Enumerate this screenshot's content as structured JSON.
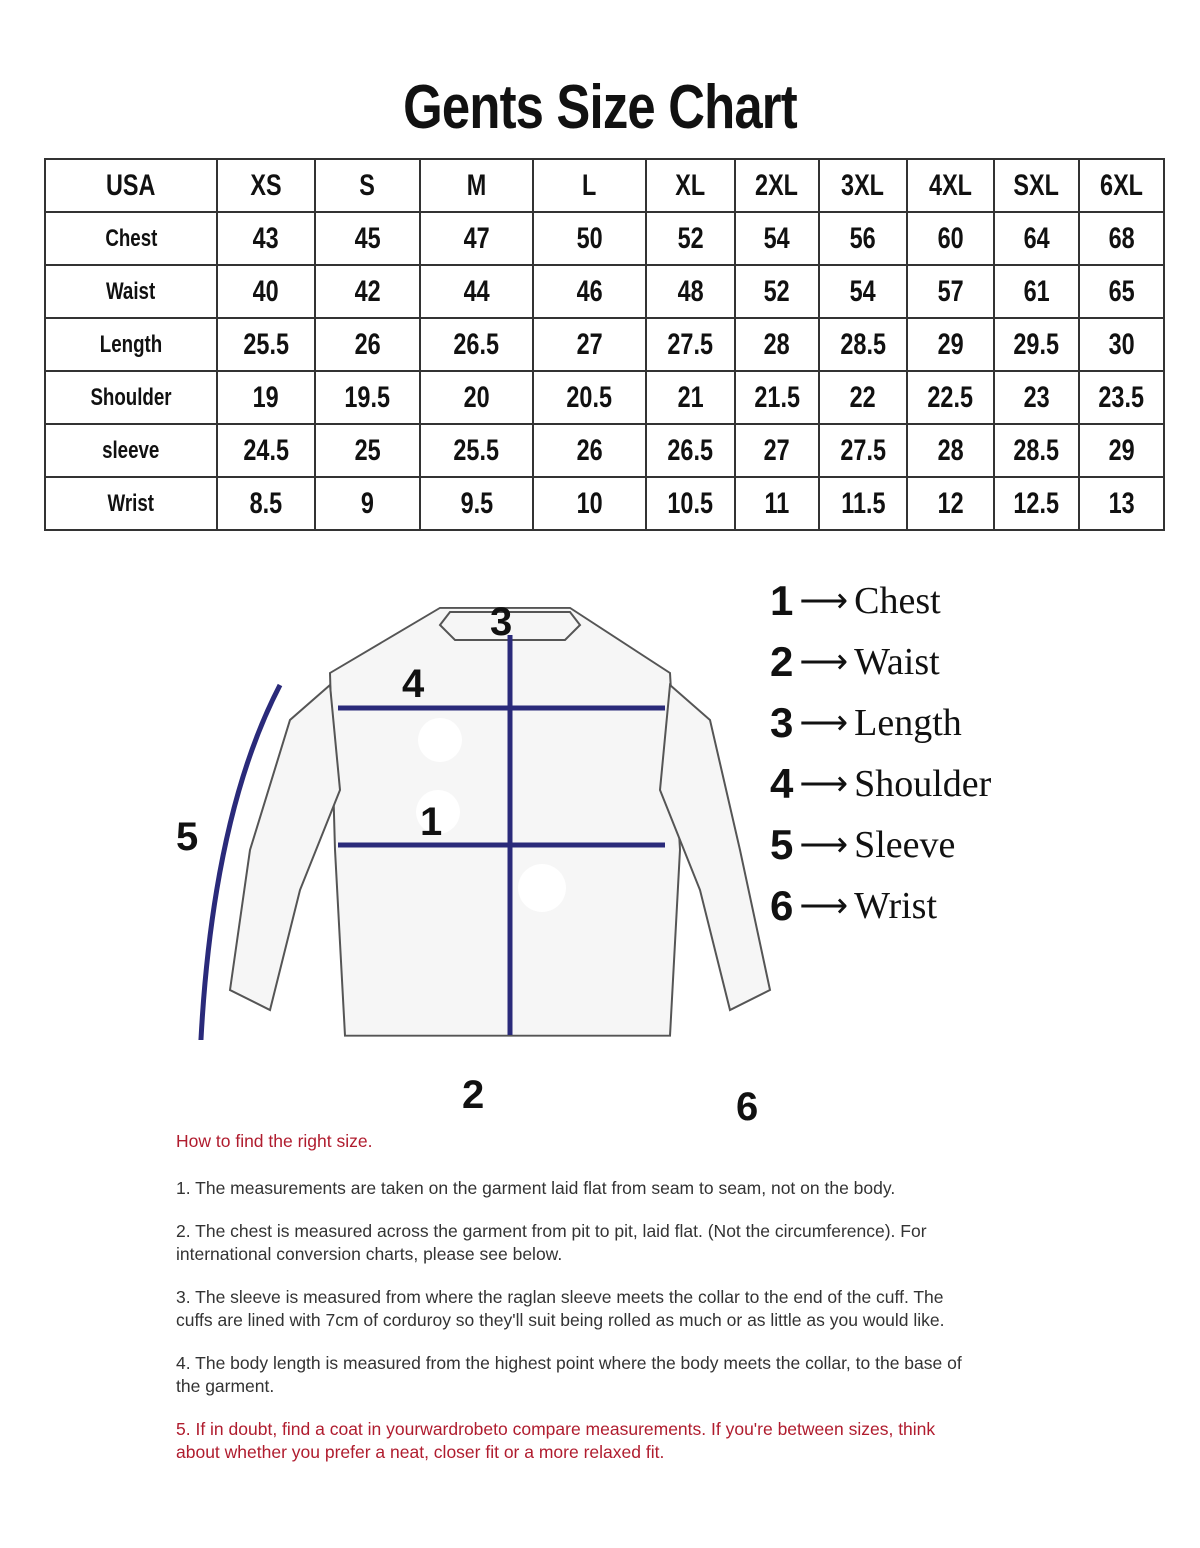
{
  "title": "Gents Size Chart",
  "table": {
    "corner": "USA",
    "sizes": [
      "XS",
      "S",
      "M",
      "L",
      "XL",
      "2XL",
      "3XL",
      "4XL",
      "SXL",
      "6XL"
    ],
    "rows": [
      {
        "label": "Chest",
        "values": [
          "43",
          "45",
          "47",
          "50",
          "52",
          "54",
          "56",
          "60",
          "64",
          "68"
        ]
      },
      {
        "label": "Waist",
        "values": [
          "40",
          "42",
          "44",
          "46",
          "48",
          "52",
          "54",
          "57",
          "61",
          "65"
        ]
      },
      {
        "label": "Length",
        "values": [
          "25.5",
          "26",
          "26.5",
          "27",
          "27.5",
          "28",
          "28.5",
          "29",
          "29.5",
          "30"
        ]
      },
      {
        "label": "Shoulder",
        "values": [
          "19",
          "19.5",
          "20",
          "20.5",
          "21",
          "21.5",
          "22",
          "22.5",
          "23",
          "23.5"
        ]
      },
      {
        "label": "sleeve",
        "values": [
          "24.5",
          "25",
          "25.5",
          "26",
          "26.5",
          "27",
          "27.5",
          "28",
          "28.5",
          "29"
        ]
      },
      {
        "label": "Wrist",
        "values": [
          "8.5",
          "9",
          "9.5",
          "10",
          "10.5",
          "11",
          "11.5",
          "12",
          "12.5",
          "13"
        ]
      }
    ]
  },
  "diagram": {
    "arrow_color": "#2a2a7a",
    "markers": {
      "chest": "1",
      "waist": "2",
      "length": "3",
      "shoulder": "4",
      "sleeve": "5",
      "wrist": "6"
    }
  },
  "legend": [
    {
      "num": "1",
      "label": "Chest"
    },
    {
      "num": "2",
      "label": "Waist"
    },
    {
      "num": "3",
      "label": "Length"
    },
    {
      "num": "4",
      "label": "Shoulder"
    },
    {
      "num": "5",
      "label": "Sleeve"
    },
    {
      "num": "6",
      "label": "Wrist"
    }
  ],
  "howto": {
    "heading": "How to find the right size.",
    "accent_color": "#b01c2e",
    "items": [
      "1. The measurements are taken on the garment laid flat from seam to seam, not on the body.",
      "2. The chest is measured across the garment from pit to pit, laid flat. (Not the circumference). For international conversion charts, please see below.",
      "3. The sleeve is measured from where the raglan sleeve meets the collar to the end of the cuff. The cuffs are lined with 7cm of corduroy so they'll suit being rolled as much or as little as you would like.",
      "4. The body length is measured from the highest point where the body meets the collar, to the base of the garment.",
      "5. If in doubt, find a coat in yourwardrobeto compare measurements. If you're between sizes, think about whether you prefer a neat, closer fit or a more relaxed fit."
    ]
  }
}
